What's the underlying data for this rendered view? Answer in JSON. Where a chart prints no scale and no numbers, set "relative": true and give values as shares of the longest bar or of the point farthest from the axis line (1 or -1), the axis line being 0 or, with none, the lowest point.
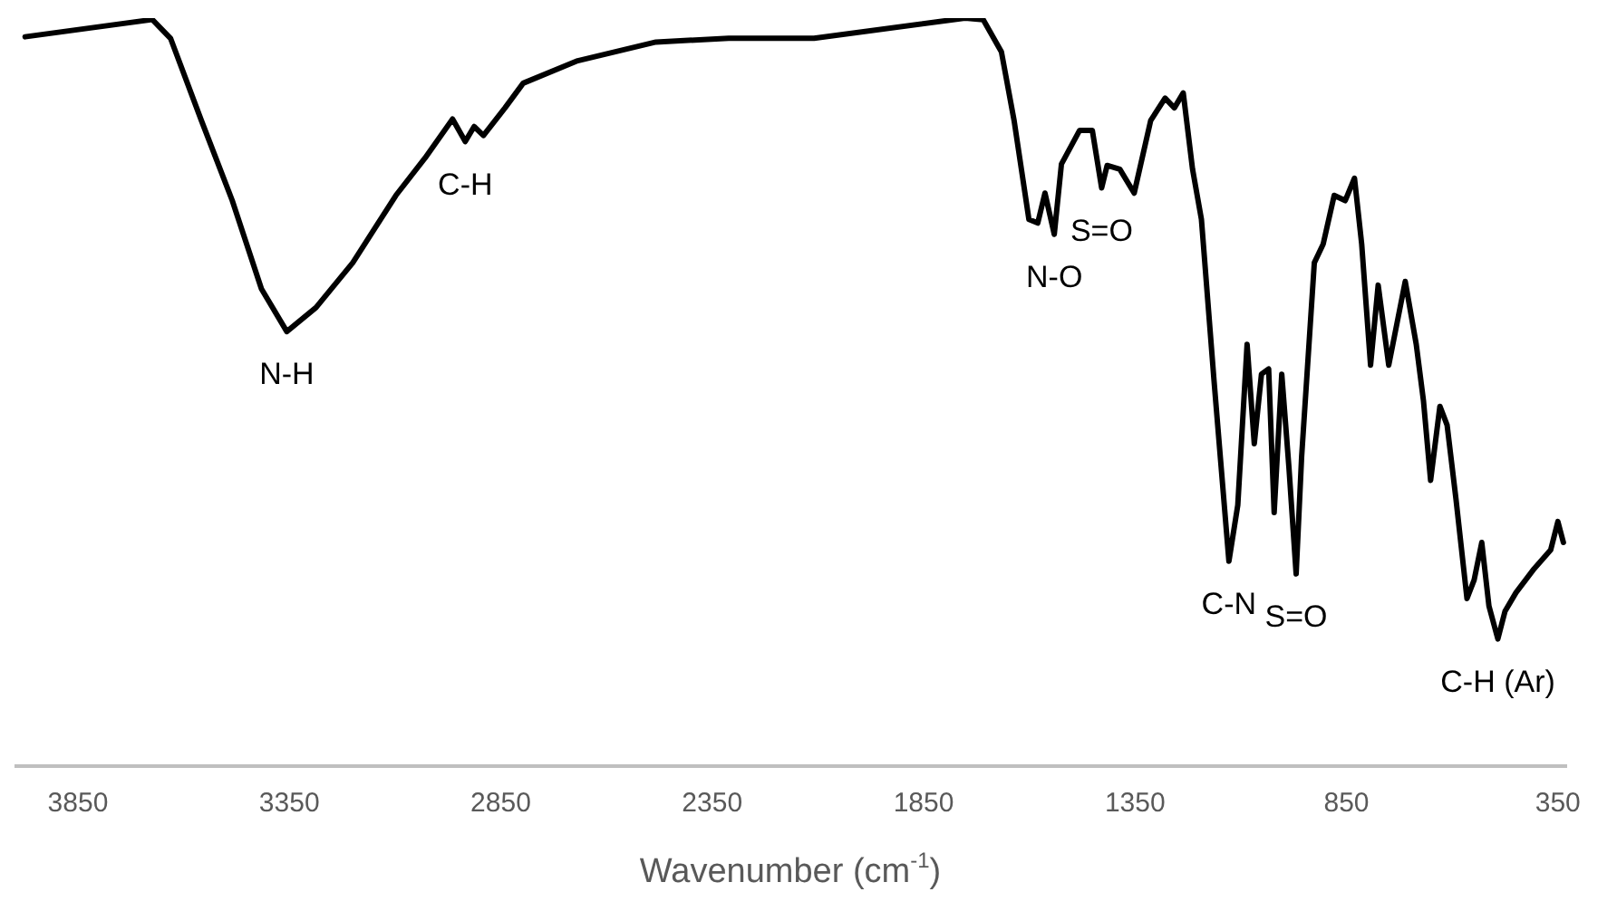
{
  "chart_data": {
    "type": "line",
    "relative": true,
    "xlabel": "Wavenumber (cm$^{-1}$)",
    "xlim": [
      4000,
      330
    ],
    "xticks": [
      3850,
      3350,
      2850,
      2350,
      1850,
      1350,
      850,
      350
    ],
    "grid": false,
    "legend": false,
    "marker": "none",
    "line_style": "solid",
    "series": [
      {
        "color": "#000000",
        "x": [
          3975,
          3674,
          3631,
          3558,
          3485,
          3416,
          3356,
          3287,
          3200,
          3098,
          3029,
          2964,
          2934,
          2913,
          2891,
          2840,
          2797,
          2668,
          2483,
          2311,
          2109,
          1752,
          1709,
          1666,
          1636,
          1601,
          1580,
          1563,
          1541,
          1524,
          1481,
          1451,
          1429,
          1416,
          1386,
          1352,
          1313,
          1279,
          1257,
          1236,
          1214,
          1193,
          1163,
          1128,
          1107,
          1085,
          1068,
          1051,
          1034,
          1021,
          1003,
          986,
          969,
          956,
          926,
          905,
          879,
          853,
          831,
          814,
          793,
          775,
          750,
          711,
          685,
          668,
          651,
          629,
          612,
          591,
          565,
          548,
          530,
          513,
          492,
          475,
          449,
          406,
          367,
          350,
          337
        ],
        "values": [
          0.975,
          0.998,
          0.973,
          0.863,
          0.756,
          0.638,
          0.581,
          0.613,
          0.673,
          0.763,
          0.813,
          0.865,
          0.835,
          0.855,
          0.843,
          0.88,
          0.913,
          0.943,
          0.968,
          0.973,
          0.973,
          1.0,
          0.998,
          0.955,
          0.863,
          0.731,
          0.726,
          0.766,
          0.711,
          0.805,
          0.85,
          0.85,
          0.773,
          0.803,
          0.798,
          0.766,
          0.863,
          0.893,
          0.88,
          0.9,
          0.798,
          0.731,
          0.514,
          0.274,
          0.349,
          0.564,
          0.431,
          0.524,
          0.531,
          0.339,
          0.524,
          0.399,
          0.257,
          0.414,
          0.673,
          0.698,
          0.763,
          0.756,
          0.786,
          0.698,
          0.536,
          0.643,
          0.536,
          0.648,
          0.564,
          0.489,
          0.382,
          0.481,
          0.456,
          0.357,
          0.224,
          0.249,
          0.299,
          0.214,
          0.17,
          0.207,
          0.232,
          0.264,
          0.289,
          0.327,
          0.299
        ]
      }
    ],
    "annotations": [
      {
        "text": "N-H",
        "x": 3356,
        "y": 0.581
      },
      {
        "text": "C-H",
        "x": 2934,
        "y": 0.835
      },
      {
        "text": "N-O",
        "x": 1541,
        "y": 0.711
      },
      {
        "text": "S=O",
        "x": 1429,
        "y": 0.773
      },
      {
        "text": "C-N",
        "x": 1128,
        "y": 0.274
      },
      {
        "text": "S=O",
        "x": 969,
        "y": 0.257
      },
      {
        "text": "C-H (Ar)",
        "x": 492,
        "y": 0.17
      }
    ]
  }
}
